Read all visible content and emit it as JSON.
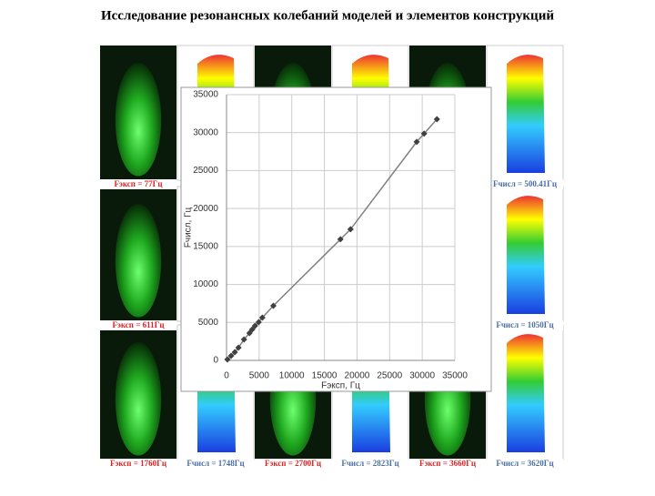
{
  "title": "Исследование резонансных колебаний моделей и элементов конструкций",
  "captions": [
    "Fэксп = 77Гц",
    "Fчисл = 500.41Гц",
    "Fэксп = 611Гц",
    "Fчисл = 1050Гц",
    "Fэксп = 1760Гц",
    "Fчисл = 1748Гц",
    "Fэксп = 2700Гц",
    "Fчисл = 2823Гц",
    "Fэксп = 3660Гц",
    "Fчисл = 3620Гц"
  ],
  "chart_data": {
    "type": "line",
    "x_label": "Fэксп, Гц",
    "y_label": "Fчисл, Гц",
    "x": [
      140,
      700,
      1270,
      1830,
      2680,
      3520,
      3940,
      4370,
      4930,
      5490,
      7180,
      17460,
      19010,
      29150,
      30280,
      32250
    ],
    "values": [
      120,
      600,
      1080,
      1680,
      2760,
      3600,
      4080,
      4560,
      5040,
      5640,
      7190,
      15950,
      17270,
      28780,
      29860,
      31770
    ],
    "color": "#404040",
    "line_color": "#808080",
    "xlim": [
      0,
      35000
    ],
    "ylim": [
      0,
      35000
    ],
    "xticks": [
      0,
      5000,
      10000,
      15000,
      20000,
      25000,
      30000,
      35000
    ],
    "yticks": [
      0,
      5000,
      10000,
      15000,
      20000,
      25000,
      30000,
      35000
    ],
    "grid": true
  }
}
